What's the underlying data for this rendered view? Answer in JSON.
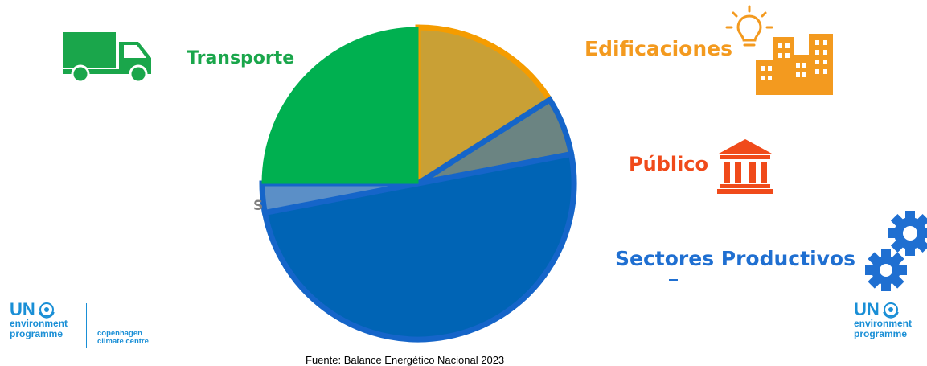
{
  "chart_data": {
    "type": "pie",
    "slices": [
      {
        "label": "Edificaciones",
        "value": 16,
        "color": "#c9a035",
        "border": "#f59c00"
      },
      {
        "label": "Público",
        "value": 6,
        "color": "#6b8482",
        "border": "#1565c9"
      },
      {
        "label": "Sectores Productivos",
        "value": 50,
        "color": "#0064b5",
        "border": "#1565c9"
      },
      {
        "label": "S",
        "value": 3,
        "color": "#5b8fc7",
        "border": "#1565c9"
      },
      {
        "label": "Transporte",
        "value": 25,
        "color": "#00b050",
        "border": "#00b050"
      }
    ],
    "start_angle_deg": 0
  },
  "labels": {
    "transporte": "Transporte",
    "edificaciones": "Edificaciones",
    "publico": "Público",
    "sectores": "Sectores Productivos",
    "s": "S"
  },
  "label_colors": {
    "transporte": "#1aa64b",
    "edificaciones": "#f39a1f",
    "publico": "#f04a1a",
    "sectores": "#1f6fd1"
  },
  "source": "Fuente: Balance Energético Nacional 2023",
  "logos": {
    "unep_left": {
      "un": "UN",
      "line1": "environment",
      "line2": "programme"
    },
    "ccc": {
      "line1": "copenhagen",
      "line2": "climate centre"
    },
    "unep_right": {
      "un": "UN",
      "line1": "environment",
      "line2": "programme"
    }
  },
  "icons": [
    "truck-icon",
    "lightbulb-icon",
    "buildings-icon",
    "government-building-icon",
    "gears-icon",
    "un-emblem-icon"
  ]
}
